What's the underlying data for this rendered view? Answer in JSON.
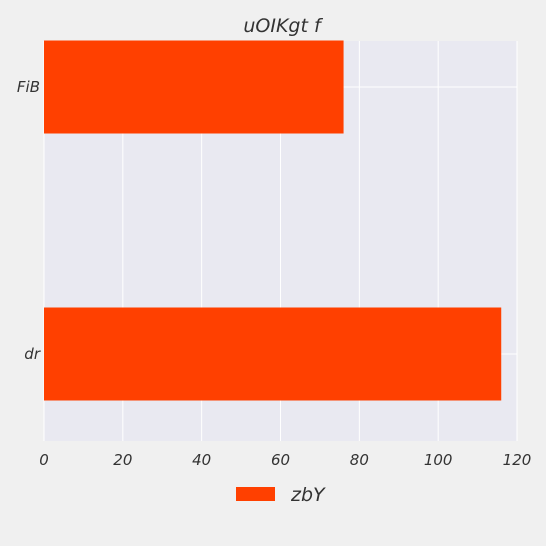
{
  "chart_data": {
    "type": "bar",
    "orientation": "horizontal",
    "title": "uOIKgt f",
    "xlabel": "",
    "ylabel": "",
    "categories": [
      "FiB",
      "dr"
    ],
    "series": [
      {
        "name": "zbY",
        "values": [
          76,
          116
        ],
        "color": "#ff4000"
      }
    ],
    "xlim": [
      0,
      120
    ],
    "xticks": [
      0,
      20,
      40,
      60,
      80,
      100,
      120
    ],
    "grid": true,
    "legend": "bottom-center"
  },
  "colors": {
    "background": "#f0f0f0",
    "plot_background": "#e9e9f1",
    "grid": "#ffffff",
    "text": "#333333"
  }
}
